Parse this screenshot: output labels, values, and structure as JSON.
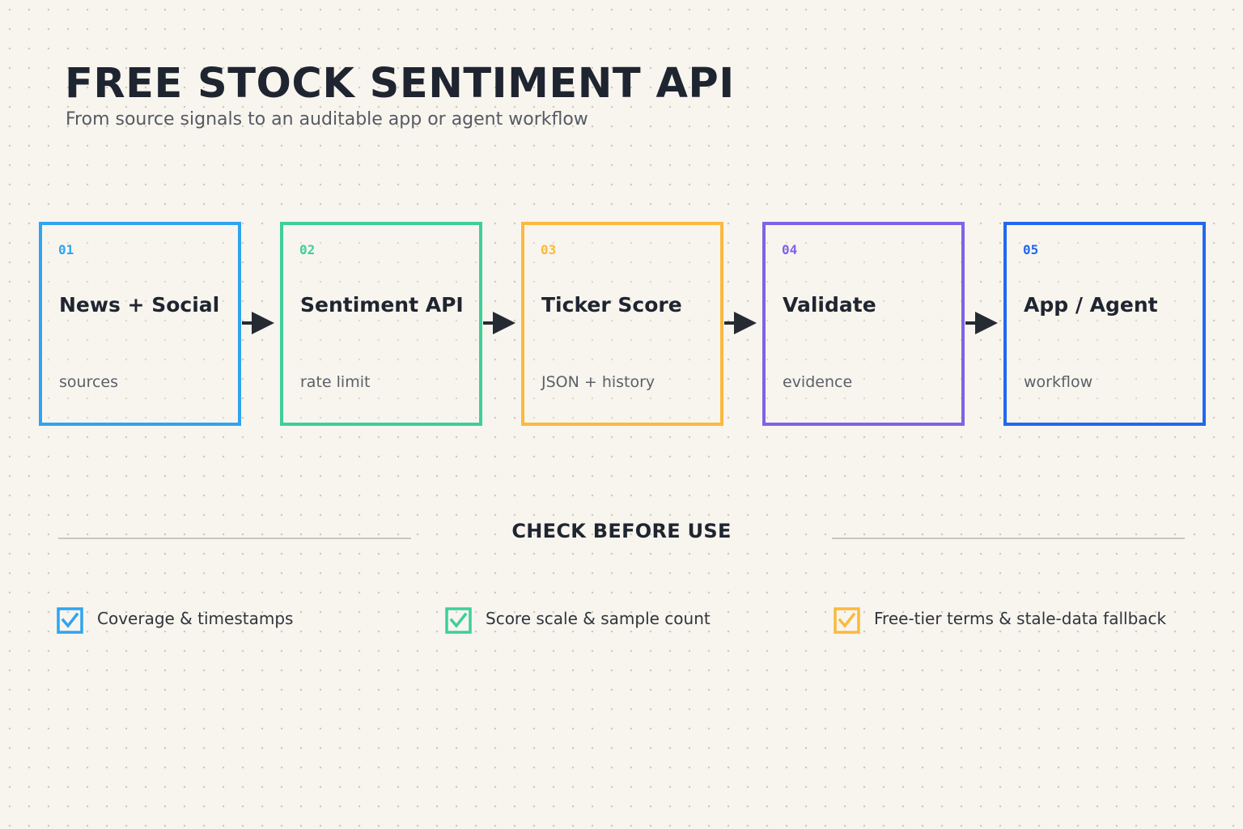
{
  "header": {
    "title": "FREE STOCK SENTIMENT API",
    "subtitle": "From source signals to an auditable app or agent workflow"
  },
  "steps": [
    {
      "num": "01",
      "title": "News + Social",
      "sub": "sources",
      "color": "#2fa4f0"
    },
    {
      "num": "02",
      "title": "Sentiment API",
      "sub": "rate limit",
      "color": "#3ecf99"
    },
    {
      "num": "03",
      "title": "Ticker Score",
      "sub": "JSON + history",
      "color": "#fbb93e"
    },
    {
      "num": "04",
      "title": "Validate",
      "sub": "evidence",
      "color": "#7f63e6"
    },
    {
      "num": "05",
      "title": "App / Agent",
      "sub": "workflow",
      "color": "#2268ee"
    }
  ],
  "checks_section": {
    "title": "CHECK BEFORE USE",
    "items": [
      {
        "label": "Coverage & timestamps",
        "color": "#2fa4f0"
      },
      {
        "label": "Score scale & sample count",
        "color": "#3ecf99"
      },
      {
        "label": "Free-tier terms & stale-data fallback",
        "color": "#fbb93e"
      }
    ]
  },
  "colors": {
    "background": "#f8f5ee",
    "text": "#1f2530",
    "muted": "#5b6068",
    "arrow": "#252a33"
  }
}
